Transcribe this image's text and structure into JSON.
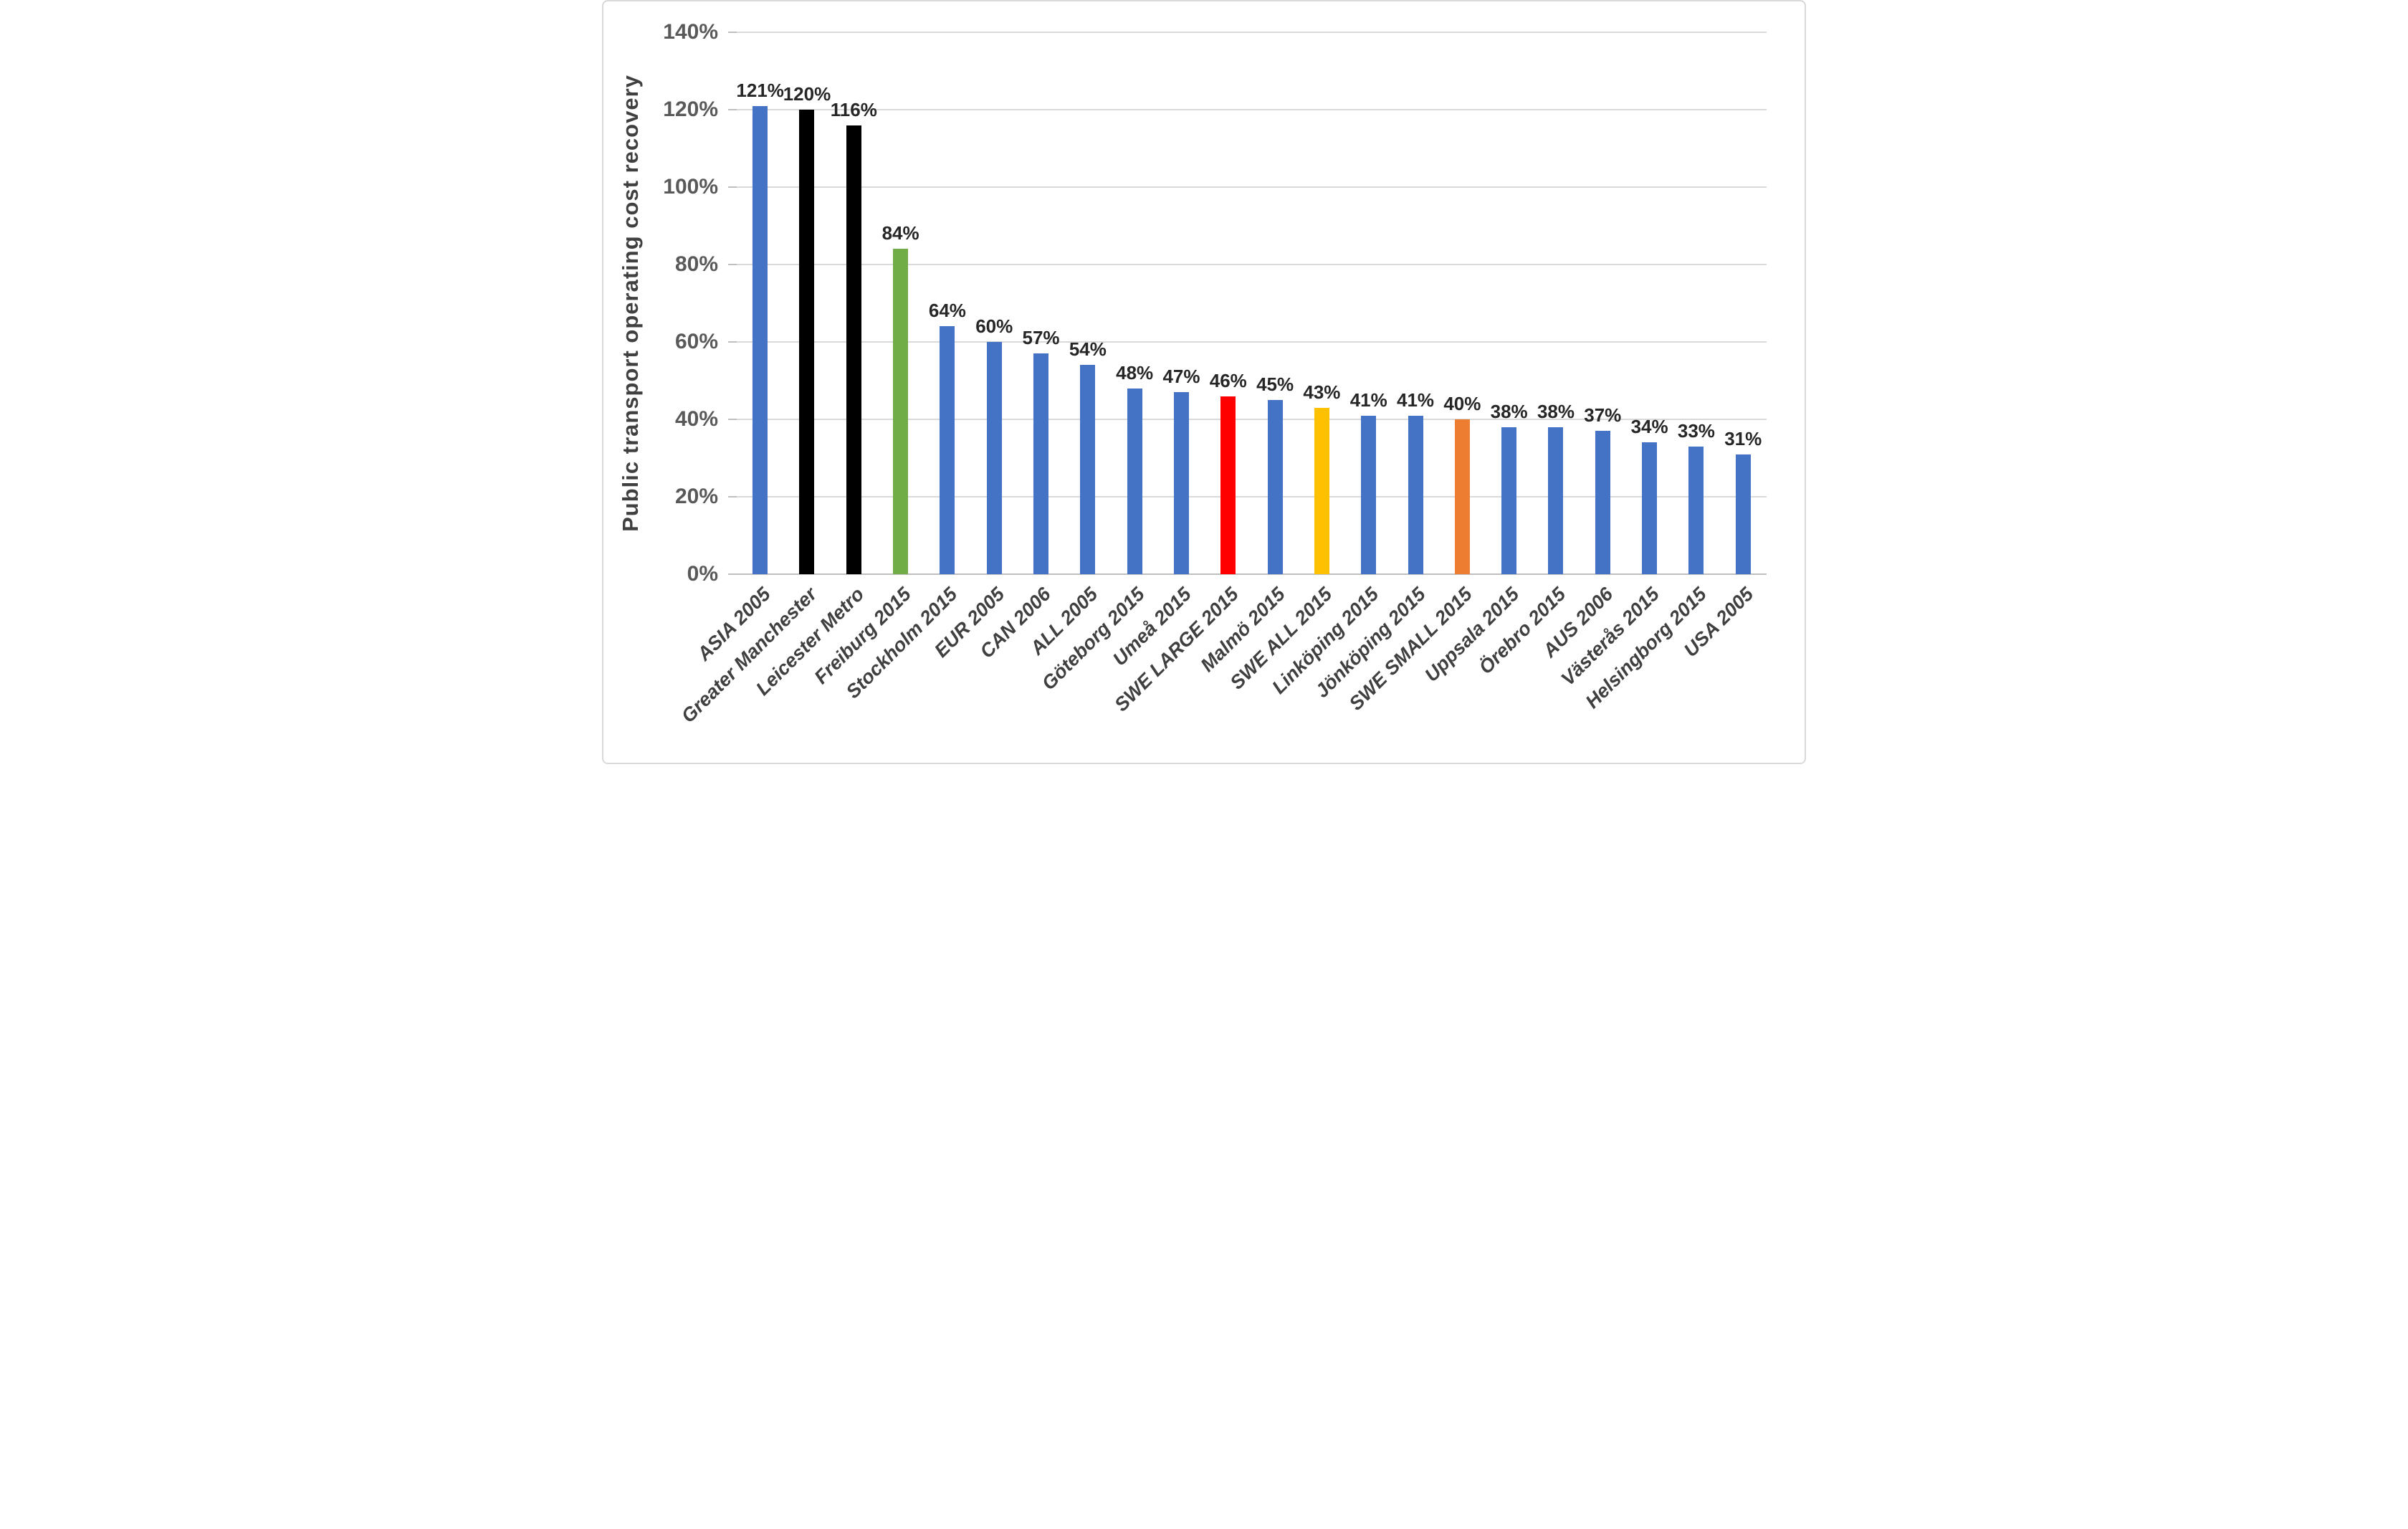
{
  "chart_data": {
    "type": "bar",
    "title": "",
    "xlabel": "",
    "ylabel": "Public transport  operating cost recovery",
    "ylim": [
      0,
      140
    ],
    "grid": true,
    "legend": false,
    "y_ticks": [
      "0%",
      "20%",
      "40%",
      "60%",
      "80%",
      "100%",
      "120%",
      "140%"
    ],
    "y_tick_values": [
      0,
      20,
      40,
      60,
      80,
      100,
      120,
      140
    ],
    "categories": [
      "ASIA 2005",
      "Greater Manchester",
      "Leicester Metro",
      "Freiburg 2015",
      "Stockholm 2015",
      "EUR 2005",
      "CAN 2006",
      "ALL 2005",
      "Göteborg 2015",
      "Umeå 2015",
      "SWE LARGE 2015",
      "Malmö 2015",
      "SWE ALL 2015",
      "Linköping 2015",
      "Jönköping 2015",
      "SWE SMALL 2015",
      "Uppsala 2015",
      "Örebro 2015",
      "AUS 2006",
      "Västerås 2015",
      "Helsingborg 2015",
      "USA 2005"
    ],
    "values": [
      121,
      120,
      116,
      84,
      64,
      60,
      57,
      54,
      48,
      47,
      46,
      45,
      43,
      41,
      41,
      40,
      38,
      38,
      37,
      34,
      33,
      31
    ],
    "labels": [
      "121%",
      "120%",
      "116%",
      "84%",
      "64%",
      "60%",
      "57%",
      "54%",
      "48%",
      "47%",
      "46%",
      "45%",
      "43%",
      "41%",
      "41%",
      "40%",
      "38%",
      "38%",
      "37%",
      "34%",
      "33%",
      "31%"
    ],
    "bar_colors": [
      "#4472C4",
      "#000000",
      "#000000",
      "#70AD47",
      "#4472C4",
      "#4472C4",
      "#4472C4",
      "#4472C4",
      "#4472C4",
      "#4472C4",
      "#FF0000",
      "#4472C4",
      "#FFC000",
      "#4472C4",
      "#4472C4",
      "#ED7D31",
      "#4472C4",
      "#4472C4",
      "#4472C4",
      "#4472C4",
      "#4472C4",
      "#4472C4"
    ],
    "colors": {
      "default_bar": "#4472C4",
      "black_bar": "#000000",
      "green_bar": "#70AD47",
      "red_bar": "#FF0000",
      "gold_bar": "#FFC000",
      "orange_bar": "#ED7D31",
      "gridline": "#D9D9D9",
      "axis_line": "#BFBFBF",
      "tick_text": "#595959",
      "label_text": "#404040"
    }
  }
}
